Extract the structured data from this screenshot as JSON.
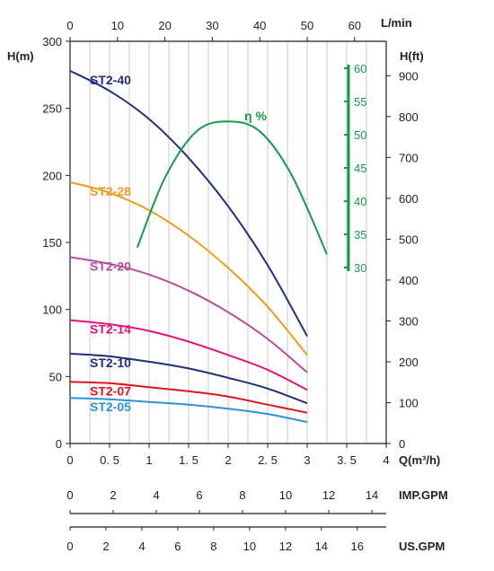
{
  "chart_data": {
    "type": "line",
    "x_unit": "Q(m³/h)",
    "x_ticks": [
      "0",
      "0. 5",
      "1",
      "1. 5",
      "2",
      "2. 5",
      "3",
      "3. 5",
      "4"
    ],
    "x_range": [
      0,
      4
    ],
    "top_unit": "L/min",
    "top_ticks": [
      "0",
      "10",
      "20",
      "30",
      "40",
      "50",
      "60"
    ],
    "y_unit": "H(m)",
    "y_ticks": [
      "0",
      "50",
      "100",
      "150",
      "200",
      "250",
      "300"
    ],
    "y_range": [
      0,
      300
    ],
    "y2_unit": "H(ft)",
    "y2_ticks": [
      "0",
      "100",
      "200",
      "300",
      "400",
      "500",
      "600",
      "700",
      "800",
      "900"
    ],
    "efficiency_label": "η %",
    "efficiency_ticks": [
      "30",
      "35",
      "40",
      "45",
      "50",
      "55",
      "60"
    ],
    "efficiency_range": [
      30,
      60
    ],
    "imp_gpm_unit": "IMP.GPM",
    "imp_gpm_ticks": [
      "0",
      "2",
      "4",
      "6",
      "8",
      "10",
      "12",
      "14"
    ],
    "us_gpm_unit": "US.GPM",
    "us_gpm_ticks": [
      "0",
      "2",
      "4",
      "6",
      "8",
      "10",
      "12",
      "14",
      "16"
    ],
    "grid": true,
    "series": [
      {
        "name": "ST2-40",
        "color": "#1f2f7a",
        "x": [
          0,
          0.5,
          1,
          1.5,
          2,
          2.5,
          3
        ],
        "y": [
          278,
          263,
          242,
          213,
          177,
          133,
          80
        ]
      },
      {
        "name": "ST2-28",
        "color": "#f39a1e",
        "x": [
          0,
          0.5,
          1,
          1.5,
          2,
          2.5,
          3
        ],
        "y": [
          195,
          187,
          174,
          155,
          131,
          102,
          66
        ]
      },
      {
        "name": "ST2-20",
        "color": "#b44f9a",
        "x": [
          0,
          0.5,
          1,
          1.5,
          2,
          2.5,
          3
        ],
        "y": [
          139,
          134,
          126,
          114,
          98,
          78,
          53
        ]
      },
      {
        "name": "ST2-14",
        "color": "#e0157a",
        "x": [
          0,
          0.5,
          1,
          1.5,
          2,
          2.5,
          3
        ],
        "y": [
          92,
          89,
          84,
          76,
          66,
          55,
          40
        ]
      },
      {
        "name": "ST2-10",
        "color": "#1f2f7a",
        "x": [
          0,
          0.5,
          1,
          1.5,
          2,
          2.5,
          3
        ],
        "y": [
          67,
          65,
          61,
          56,
          49,
          41,
          30
        ]
      },
      {
        "name": "ST2-07",
        "color": "#e0141e",
        "x": [
          0,
          0.5,
          1,
          1.5,
          2,
          2.5,
          3
        ],
        "y": [
          46,
          45,
          42,
          39,
          35,
          29,
          23
        ]
      },
      {
        "name": "ST2-05",
        "color": "#2c93d6",
        "x": [
          0,
          0.5,
          1,
          1.5,
          2,
          2.5,
          3
        ],
        "y": [
          34,
          33,
          31,
          29,
          26,
          22,
          16
        ]
      }
    ],
    "efficiency_curve": {
      "color": "#159a4a",
      "x": [
        0.85,
        1.2,
        1.6,
        2.0,
        2.4,
        2.8,
        3.25
      ],
      "eff": [
        33,
        43.5,
        50.5,
        52,
        50.5,
        44,
        32
      ]
    }
  }
}
